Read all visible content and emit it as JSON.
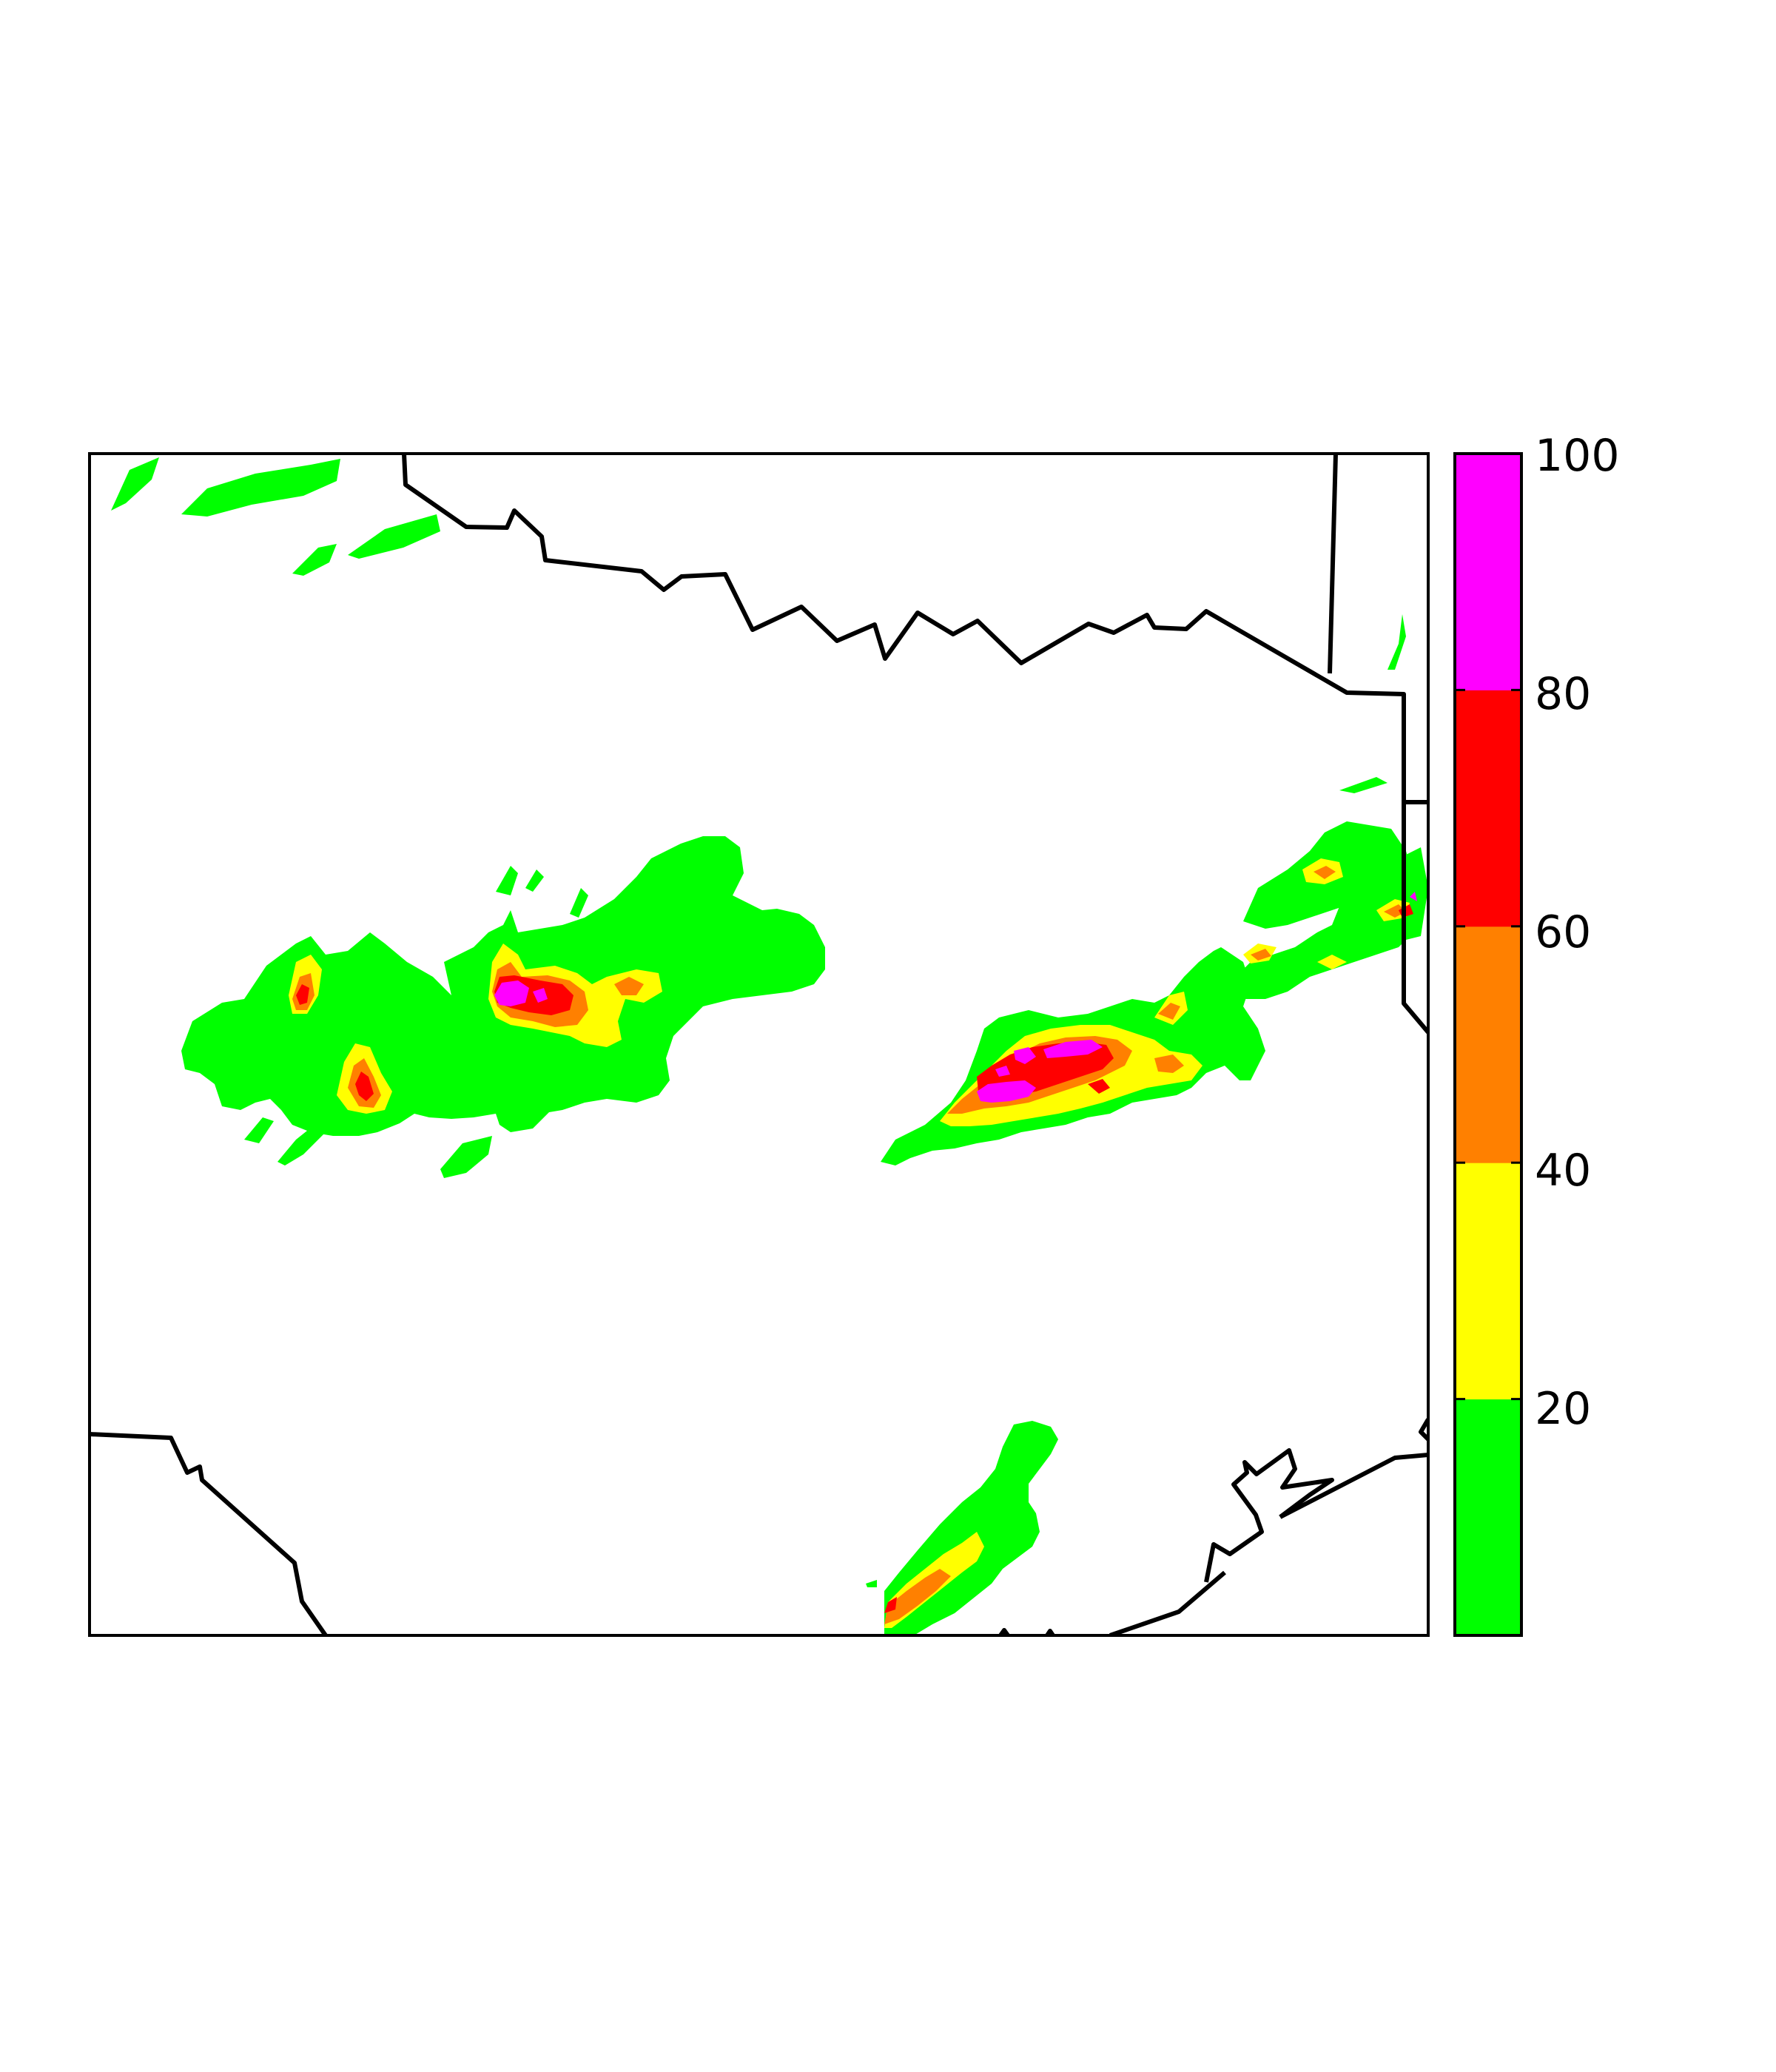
{
  "chart_data": {
    "type": "heatmap",
    "title": "",
    "xlabel": "",
    "ylabel": "",
    "colorbar": {
      "range": [
        0,
        100
      ],
      "ticks": [
        "20",
        "40",
        "60",
        "80",
        "100"
      ],
      "levels": [
        {
          "from": 0,
          "to": 20,
          "color": "#00ff00"
        },
        {
          "from": 20,
          "to": 40,
          "color": "#ffff00"
        },
        {
          "from": 40,
          "to": 60,
          "color": "#ff8000"
        },
        {
          "from": 60,
          "to": 80,
          "color": "#ff0000"
        },
        {
          "from": 80,
          "to": 100,
          "color": "#ff00ff"
        }
      ]
    },
    "storm_cells": [
      {
        "name": "northwest-streaks",
        "peak_level": 1
      },
      {
        "name": "west-central-complex",
        "peak_level": 5
      },
      {
        "name": "east-central-complex",
        "peak_level": 5
      },
      {
        "name": "far-east-cells",
        "peak_level": 5
      },
      {
        "name": "south-cell",
        "peak_level": 4
      }
    ]
  }
}
